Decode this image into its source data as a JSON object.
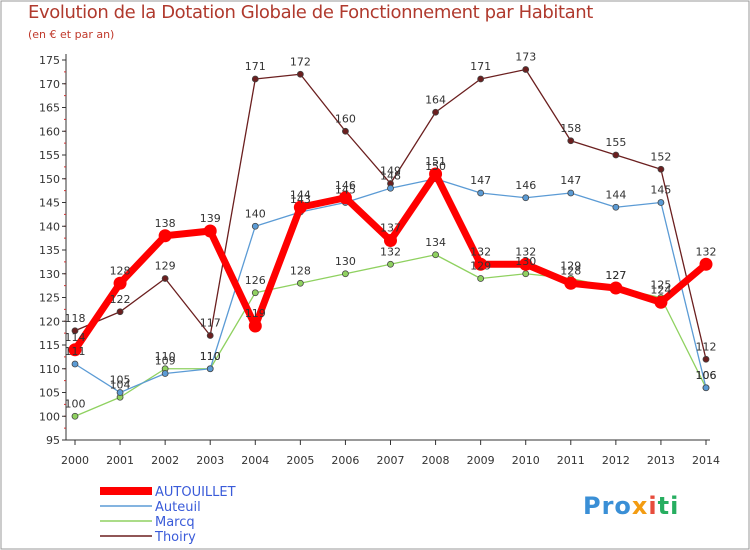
{
  "title": "Evolution de la Dotation Globale de Fonctionnement par Habitant",
  "subtitle": "(en € et par an)",
  "logo_text": "Proxiti",
  "chart_data": {
    "type": "line",
    "x": [
      "2000",
      "2001",
      "2002",
      "2003",
      "2004",
      "2005",
      "2006",
      "2007",
      "2008",
      "2009",
      "2010",
      "2011",
      "2012",
      "2013",
      "2014"
    ],
    "yticks": [
      95,
      100,
      105,
      110,
      115,
      120,
      125,
      130,
      135,
      140,
      145,
      150,
      155,
      160,
      165,
      170,
      175
    ],
    "ylim": [
      95,
      175
    ],
    "grid": false,
    "legend_position": "bottom-left",
    "series": [
      {
        "name": "AUTOUILLET",
        "color": "#ff0000",
        "values": [
          114,
          128,
          138,
          139,
          119,
          144,
          146,
          137,
          151,
          132,
          132,
          128,
          127,
          124,
          132
        ]
      },
      {
        "name": "Auteuil",
        "color": "#5b9bd5",
        "values": [
          111,
          105,
          109,
          110,
          140,
          143,
          145,
          148,
          150,
          147,
          146,
          147,
          144,
          145,
          106
        ]
      },
      {
        "name": "Marcq",
        "color": "#8fd160",
        "values": [
          100,
          104,
          110,
          110,
          126,
          128,
          130,
          132,
          134,
          129,
          130,
          129,
          127,
          125,
          106
        ]
      },
      {
        "name": "Thoiry",
        "color": "#6b1f1f",
        "values": [
          118,
          122,
          129,
          117,
          171,
          172,
          160,
          149,
          164,
          171,
          173,
          158,
          155,
          152,
          112
        ]
      }
    ]
  }
}
